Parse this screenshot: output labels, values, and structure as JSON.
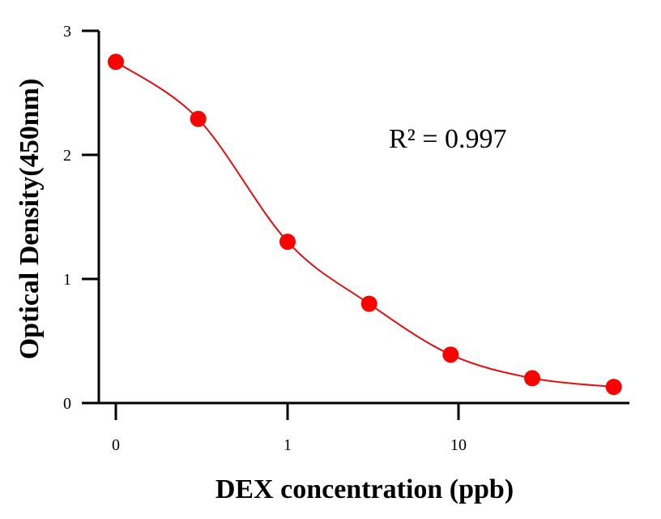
{
  "chart_data": {
    "type": "scatter",
    "title": "",
    "xlabel": "DEX concentration (ppb)",
    "ylabel": "Optical Density(450nm)",
    "ylim": [
      0,
      3
    ],
    "x_tick_labels": [
      "0",
      "1",
      "10"
    ],
    "y_tick_labels": [
      "0",
      "1",
      "2",
      "3"
    ],
    "series": [
      {
        "x": [
          0,
          0.3,
          1,
          3,
          9,
          27,
          81
        ],
        "y": [
          2.75,
          2.29,
          1.3,
          0.8,
          0.39,
          0.2,
          0.13
        ],
        "color": "#ff0000"
      }
    ],
    "fit_curve": {
      "color": "#dd1111",
      "smooth": true
    },
    "annotation": "R² = 0.997",
    "grid": false,
    "legend": "none"
  }
}
